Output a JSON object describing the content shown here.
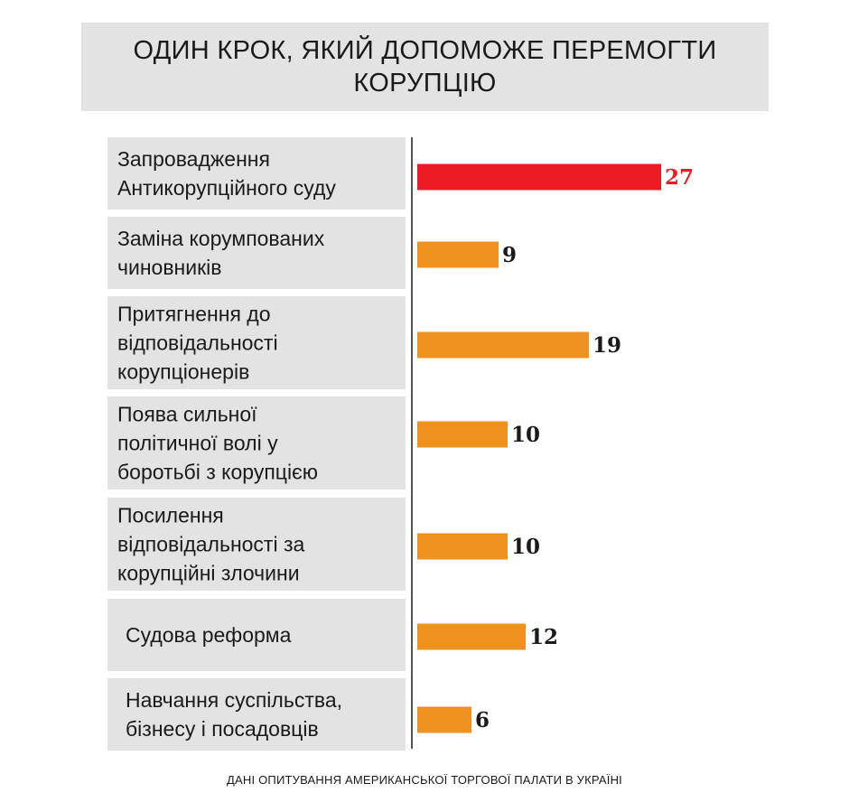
{
  "chart_data": {
    "type": "bar",
    "orientation": "horizontal",
    "title": "ОДИН КРОК, ЯКИЙ ДОПОМОЖЕ ПЕРЕМОГТИ КОРУПЦІЮ",
    "categories": [
      "Запровадження Антикорупційного суду",
      "Заміна корумпованих чиновників",
      "Притягнення до відповідальності корупціонерів",
      "Поява сильної політичної волі у боротьбі з корупцією",
      "Посилення відповідальності за корупційні злочини",
      "Судова реформа",
      "Навчання суспільства, бізнесу і посадовців"
    ],
    "category_lines": [
      [
        "Запровадження",
        "Антикорупційного суду"
      ],
      [
        "Заміна корумпованих",
        "чиновників"
      ],
      [
        "Притягнення до",
        "відповідальності",
        "корупціонерів"
      ],
      [
        "Поява сильної",
        "політичної волі у",
        "боротьбі з корупцією"
      ],
      [
        "Посилення",
        "відповідальності за",
        "корупційні злочини"
      ],
      [
        "Судова реформа"
      ],
      [
        "Навчання суспільства,",
        "бізнесу і посадовців"
      ]
    ],
    "values": [
      27,
      9,
      19,
      10,
      10,
      12,
      6
    ],
    "highlight_index": 0,
    "colors": {
      "highlight": "#ec1c24",
      "bar": "#f0901f",
      "label_box": "#e3e3e3",
      "axis": "#1a1a1a",
      "value_text": "#1a1a1a"
    },
    "legend": "none",
    "grid": false
  },
  "source": "ДАНІ ОПИТУВАННЯ АМЕРИКАНСЬКОЇ ТОРГОВОЇ ПАЛАТИ В УКРАЇНІ"
}
